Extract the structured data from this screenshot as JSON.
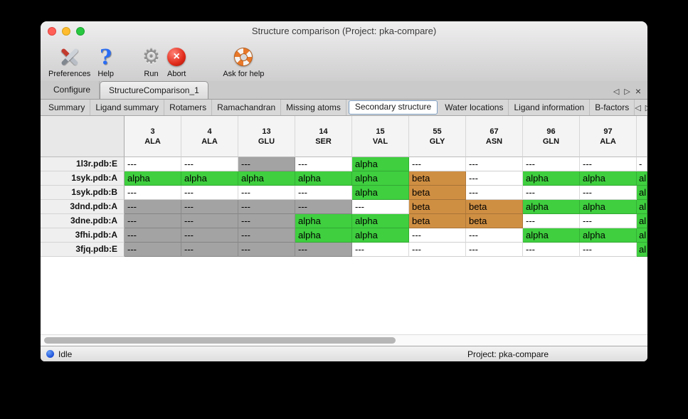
{
  "window": {
    "title": "Structure comparison (Project: pka-compare)"
  },
  "toolbar": {
    "items": [
      {
        "label": "Preferences"
      },
      {
        "label": "Help"
      },
      {
        "label": "Run"
      },
      {
        "label": "Abort"
      },
      {
        "label": "Ask for help"
      }
    ]
  },
  "icons": {
    "scroll_left": "◁",
    "scroll_right": "▷",
    "close_tab": "×",
    "help_glyph": "?",
    "gear_glyph": "⚙",
    "abort_glyph": "×"
  },
  "tabs": {
    "primary": [
      {
        "label": "Configure",
        "selected": false
      },
      {
        "label": "StructureComparison_1",
        "selected": true
      }
    ],
    "secondary": [
      {
        "label": "Summary",
        "selected": false
      },
      {
        "label": "Ligand summary",
        "selected": false
      },
      {
        "label": "Rotamers",
        "selected": false
      },
      {
        "label": "Ramachandran",
        "selected": false
      },
      {
        "label": "Missing atoms",
        "selected": false
      },
      {
        "label": "Secondary structure",
        "selected": true
      },
      {
        "label": "Water locations",
        "selected": false
      },
      {
        "label": "Ligand information",
        "selected": false
      },
      {
        "label": "B-factors",
        "selected": false
      }
    ]
  },
  "colors": {
    "alpha": "#3fcf3f",
    "beta": "#cf8f43",
    "missing": "#a3a3a3",
    "empty": "#ffffff"
  },
  "table": {
    "columns": [
      {
        "number": "3",
        "residue": "ALA"
      },
      {
        "number": "4",
        "residue": "ALA"
      },
      {
        "number": "13",
        "residue": "GLU"
      },
      {
        "number": "14",
        "residue": "SER"
      },
      {
        "number": "15",
        "residue": "VAL"
      },
      {
        "number": "55",
        "residue": "GLY"
      },
      {
        "number": "67",
        "residue": "ASN"
      },
      {
        "number": "96",
        "residue": "GLN"
      },
      {
        "number": "97",
        "residue": "ALA"
      }
    ],
    "rows": [
      {
        "name": "1l3r.pdb:E",
        "cells": [
          {
            "text": "---",
            "style": "plain"
          },
          {
            "text": "---",
            "style": "plain"
          },
          {
            "text": "---",
            "style": "gray"
          },
          {
            "text": "---",
            "style": "plain"
          },
          {
            "text": "alpha",
            "style": "alpha"
          },
          {
            "text": "---",
            "style": "plain"
          },
          {
            "text": "---",
            "style": "plain"
          },
          {
            "text": "---",
            "style": "plain"
          },
          {
            "text": "---",
            "style": "plain"
          }
        ],
        "partial": {
          "text": "-",
          "style": "plain"
        }
      },
      {
        "name": "1syk.pdb:A",
        "cells": [
          {
            "text": "alpha",
            "style": "alpha"
          },
          {
            "text": "alpha",
            "style": "alpha"
          },
          {
            "text": "alpha",
            "style": "alpha"
          },
          {
            "text": "alpha",
            "style": "alpha"
          },
          {
            "text": "alpha",
            "style": "alpha"
          },
          {
            "text": "beta",
            "style": "beta"
          },
          {
            "text": "---",
            "style": "plain"
          },
          {
            "text": "alpha",
            "style": "alpha"
          },
          {
            "text": "alpha",
            "style": "alpha"
          }
        ],
        "partial": {
          "text": "al",
          "style": "alpha"
        }
      },
      {
        "name": "1syk.pdb:B",
        "cells": [
          {
            "text": "---",
            "style": "plain"
          },
          {
            "text": "---",
            "style": "plain"
          },
          {
            "text": "---",
            "style": "plain"
          },
          {
            "text": "---",
            "style": "plain"
          },
          {
            "text": "alpha",
            "style": "alpha"
          },
          {
            "text": "beta",
            "style": "beta"
          },
          {
            "text": "---",
            "style": "plain"
          },
          {
            "text": "---",
            "style": "plain"
          },
          {
            "text": "---",
            "style": "plain"
          }
        ],
        "partial": {
          "text": "al",
          "style": "alpha"
        }
      },
      {
        "name": "3dnd.pdb:A",
        "cells": [
          {
            "text": "---",
            "style": "gray"
          },
          {
            "text": "---",
            "style": "gray"
          },
          {
            "text": "---",
            "style": "gray"
          },
          {
            "text": "---",
            "style": "gray"
          },
          {
            "text": "---",
            "style": "plain"
          },
          {
            "text": "beta",
            "style": "beta"
          },
          {
            "text": "beta",
            "style": "beta"
          },
          {
            "text": "alpha",
            "style": "alpha"
          },
          {
            "text": "alpha",
            "style": "alpha"
          }
        ],
        "partial": {
          "text": "al",
          "style": "alpha"
        }
      },
      {
        "name": "3dne.pdb:A",
        "cells": [
          {
            "text": "---",
            "style": "gray"
          },
          {
            "text": "---",
            "style": "gray"
          },
          {
            "text": "---",
            "style": "gray"
          },
          {
            "text": "alpha",
            "style": "alpha"
          },
          {
            "text": "alpha",
            "style": "alpha"
          },
          {
            "text": "beta",
            "style": "beta"
          },
          {
            "text": "beta",
            "style": "beta"
          },
          {
            "text": "---",
            "style": "plain"
          },
          {
            "text": "---",
            "style": "plain"
          }
        ],
        "partial": {
          "text": "al",
          "style": "alpha"
        }
      },
      {
        "name": "3fhi.pdb:A",
        "cells": [
          {
            "text": "---",
            "style": "gray"
          },
          {
            "text": "---",
            "style": "gray"
          },
          {
            "text": "---",
            "style": "gray"
          },
          {
            "text": "alpha",
            "style": "alpha"
          },
          {
            "text": "alpha",
            "style": "alpha"
          },
          {
            "text": "---",
            "style": "plain"
          },
          {
            "text": "---",
            "style": "plain"
          },
          {
            "text": "alpha",
            "style": "alpha"
          },
          {
            "text": "alpha",
            "style": "alpha"
          }
        ],
        "partial": {
          "text": "al",
          "style": "alpha"
        }
      },
      {
        "name": "3fjq.pdb:E",
        "cells": [
          {
            "text": "---",
            "style": "gray"
          },
          {
            "text": "---",
            "style": "gray"
          },
          {
            "text": "---",
            "style": "gray"
          },
          {
            "text": "---",
            "style": "gray"
          },
          {
            "text": "---",
            "style": "plain"
          },
          {
            "text": "---",
            "style": "plain"
          },
          {
            "text": "---",
            "style": "plain"
          },
          {
            "text": "---",
            "style": "plain"
          },
          {
            "text": "---",
            "style": "plain"
          }
        ],
        "partial": {
          "text": "al",
          "style": "alpha"
        }
      }
    ]
  },
  "statusbar": {
    "status": "Idle",
    "project": "Project: pka-compare"
  }
}
